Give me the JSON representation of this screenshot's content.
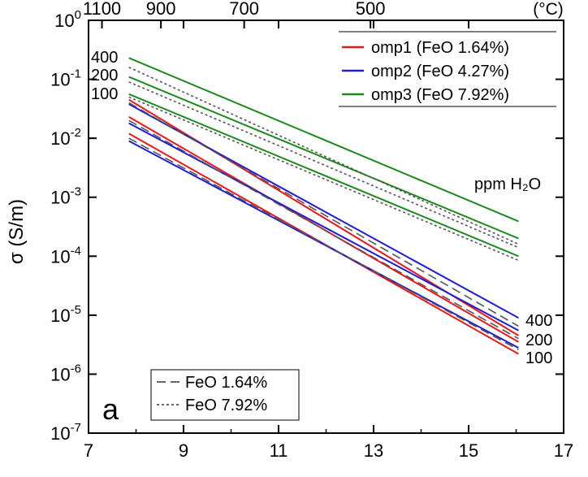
{
  "chart_data": {
    "type": "line",
    "panel_label": "a",
    "xlabel": "",
    "ylabel": "σ (S/m)",
    "xlim": [
      7,
      17
    ],
    "y_scale": "log",
    "ylim": [
      1e-07,
      1
    ],
    "x_ticks": [
      7,
      9,
      11,
      13,
      15,
      17
    ],
    "x_tick_labels": [
      "7",
      "9",
      "11",
      "13",
      "15",
      "17"
    ],
    "y_tick_exponents": [
      0,
      -1,
      -2,
      -3,
      -4,
      -5,
      -6,
      -7
    ],
    "top_axis_unit": "(°C)",
    "top_axis_ticks": [
      {
        "label": "1100",
        "celsius": 1100
      },
      {
        "label": "900",
        "celsius": 900
      },
      {
        "label": "700",
        "celsius": 700
      },
      {
        "label": "500",
        "celsius": 500
      }
    ],
    "annotations": {
      "water_title": "ppm H₂O",
      "left_labels": [
        "400",
        "200",
        "100"
      ],
      "right_labels": [
        "400",
        "200",
        "100"
      ]
    },
    "legend_top": [
      {
        "name": "omp1 (FeO 1.64%)",
        "color": "#e8191c"
      },
      {
        "name": "omp2 (FeO 4.27%)",
        "color": "#1f1fd2"
      },
      {
        "name": "omp3 (FeO 7.92%)",
        "color": "#1c8a1c"
      }
    ],
    "legend_bottom": [
      {
        "name": "FeO 1.64%",
        "style": "dashed",
        "color": "#555555"
      },
      {
        "name": "FeO 7.92%",
        "style": "dotted",
        "color": "#555555"
      }
    ],
    "series": [
      {
        "name": "omp1 (FeO 1.64%)",
        "color": "#e8191c",
        "style": "solid",
        "ppm": 400,
        "x": [
          7.85,
          16.05
        ],
        "y": [
          0.045,
          4.5e-06
        ]
      },
      {
        "name": "omp1 (FeO 1.64%)",
        "color": "#e8191c",
        "style": "solid",
        "ppm": 200,
        "x": [
          7.85,
          16.05
        ],
        "y": [
          0.023,
          3.5e-06
        ]
      },
      {
        "name": "omp1 (FeO 1.64%)",
        "color": "#e8191c",
        "style": "solid",
        "ppm": 100,
        "x": [
          7.85,
          16.05
        ],
        "y": [
          0.012,
          2.2e-06
        ]
      },
      {
        "name": "omp2 (FeO 4.27%)",
        "color": "#1f1fd2",
        "style": "solid",
        "ppm": 400,
        "x": [
          7.85,
          16.05
        ],
        "y": [
          0.038,
          9e-06
        ]
      },
      {
        "name": "omp2 (FeO 4.27%)",
        "color": "#1f1fd2",
        "style": "solid",
        "ppm": 200,
        "x": [
          7.85,
          16.05
        ],
        "y": [
          0.018,
          5.5e-06
        ]
      },
      {
        "name": "omp2 (FeO 4.27%)",
        "color": "#1f1fd2",
        "style": "solid",
        "ppm": 100,
        "x": [
          7.85,
          16.05
        ],
        "y": [
          0.009,
          2.8e-06
        ]
      },
      {
        "name": "FeO 1.64%",
        "color": "#555555",
        "style": "dashed",
        "ppm": 400,
        "x": [
          7.85,
          16.05
        ],
        "y": [
          0.04,
          6.5e-06
        ]
      },
      {
        "name": "FeO 1.64%",
        "color": "#555555",
        "style": "dashed",
        "ppm": 200,
        "x": [
          7.85,
          16.05
        ],
        "y": [
          0.02,
          4e-06
        ]
      },
      {
        "name": "FeO 1.64%",
        "color": "#555555",
        "style": "dashed",
        "ppm": 100,
        "x": [
          7.85,
          16.05
        ],
        "y": [
          0.01,
          2.6e-06
        ]
      },
      {
        "name": "omp3 (FeO 7.92%)",
        "color": "#1c8a1c",
        "style": "solid",
        "ppm": 400,
        "x": [
          7.85,
          16.05
        ],
        "y": [
          0.23,
          0.00039
        ]
      },
      {
        "name": "omp3 (FeO 7.92%)",
        "color": "#1c8a1c",
        "style": "solid",
        "ppm": 200,
        "x": [
          7.85,
          16.05
        ],
        "y": [
          0.11,
          0.0002
        ]
      },
      {
        "name": "omp3 (FeO 7.92%)",
        "color": "#1c8a1c",
        "style": "solid",
        "ppm": 100,
        "x": [
          7.85,
          16.05
        ],
        "y": [
          0.056,
          0.0001
        ]
      },
      {
        "name": "FeO 7.92%",
        "color": "#555555",
        "style": "dotted",
        "ppm": 400,
        "x": [
          7.85,
          16.05
        ],
        "y": [
          0.16,
          0.00016
        ]
      },
      {
        "name": "FeO 7.92%",
        "color": "#555555",
        "style": "dotted",
        "ppm": 200,
        "x": [
          7.85,
          16.05
        ],
        "y": [
          0.09,
          0.00014
        ]
      },
      {
        "name": "FeO 7.92%",
        "color": "#555555",
        "style": "dotted",
        "ppm": 100,
        "x": [
          7.85,
          16.05
        ],
        "y": [
          0.05,
          8.5e-05
        ]
      }
    ]
  }
}
